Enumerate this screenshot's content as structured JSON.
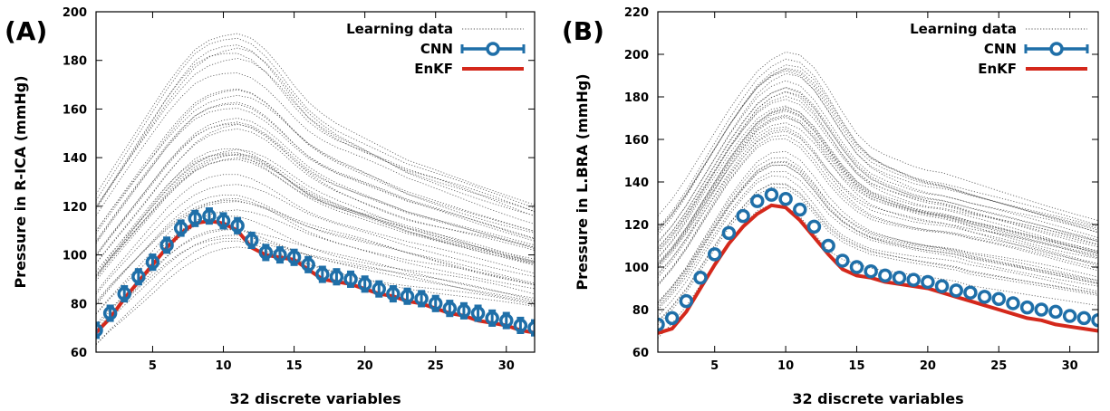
{
  "chart_data": [
    {
      "panel_label": "(A)",
      "type": "line",
      "xlabel": "32 discrete variables",
      "ylabel": "Pressure in R-ICA (mmHg)",
      "xlim": [
        1,
        32
      ],
      "ylim": [
        60,
        200
      ],
      "xticks": [
        5,
        10,
        15,
        20,
        25,
        30
      ],
      "yticks": [
        60,
        80,
        100,
        120,
        140,
        160,
        180,
        200
      ],
      "legend_position": "top-right",
      "legend": [
        "Learning data",
        "CNN",
        "EnKF"
      ],
      "learning_envelope": {
        "lower": [
          60,
          66,
          71,
          76,
          81,
          86,
          90,
          93,
          95,
          96,
          96,
          95,
          94,
          93,
          92,
          91,
          90,
          89,
          88,
          87,
          86,
          85,
          84,
          83,
          82,
          81,
          80,
          79,
          78,
          77,
          76,
          75
        ],
        "upper": [
          125,
          134,
          143,
          152,
          161,
          170,
          178,
          185,
          189,
          191,
          192,
          190,
          185,
          178,
          170,
          163,
          158,
          154,
          151,
          148,
          145,
          142,
          139,
          137,
          135,
          133,
          131,
          129,
          127,
          125,
          123,
          121
        ],
        "curve_count": 40
      },
      "series": [
        {
          "name": "CNN",
          "color": "#1f6fa8",
          "x": [
            1,
            2,
            3,
            4,
            5,
            6,
            7,
            8,
            9,
            10,
            11,
            12,
            13,
            14,
            15,
            16,
            17,
            18,
            19,
            20,
            21,
            22,
            23,
            24,
            25,
            26,
            27,
            28,
            29,
            30,
            31,
            32
          ],
          "values": [
            69,
            76,
            84,
            91,
            97,
            104,
            111,
            115,
            116,
            114,
            112,
            106,
            101,
            100,
            99,
            96,
            92,
            91,
            90,
            88,
            86,
            84,
            83,
            82,
            80,
            78,
            77,
            76,
            74,
            73,
            71,
            70
          ],
          "error": 3
        },
        {
          "name": "EnKF",
          "color": "#d4281b",
          "x": [
            1,
            2,
            3,
            4,
            5,
            6,
            7,
            8,
            9,
            10,
            11,
            12,
            13,
            14,
            15,
            16,
            17,
            18,
            19,
            20,
            21,
            22,
            23,
            24,
            25,
            26,
            27,
            28,
            29,
            30,
            31,
            32
          ],
          "values": [
            68,
            74,
            82,
            89,
            96,
            103,
            109,
            113,
            114,
            113,
            110,
            103,
            100,
            99,
            98,
            94,
            90,
            89,
            88,
            86,
            84,
            83,
            81,
            80,
            78,
            76,
            75,
            73,
            72,
            71,
            69,
            68
          ]
        }
      ]
    },
    {
      "panel_label": "(B)",
      "type": "line",
      "xlabel": "32 discrete variables",
      "ylabel": "Pressure in L.BRA (mmHg)",
      "xlim": [
        1,
        32
      ],
      "ylim": [
        60,
        220
      ],
      "xticks": [
        5,
        10,
        15,
        20,
        25,
        30
      ],
      "yticks": [
        60,
        80,
        100,
        120,
        140,
        160,
        180,
        200,
        220
      ],
      "legend_position": "top-right",
      "legend": [
        "Learning data",
        "CNN",
        "EnKF"
      ],
      "learning_envelope": {
        "lower": [
          65,
          72,
          80,
          90,
          100,
          110,
          118,
          125,
          128,
          127,
          122,
          114,
          106,
          102,
          100,
          98,
          97,
          96,
          95,
          94,
          93,
          92,
          90,
          89,
          88,
          87,
          86,
          85,
          84,
          83,
          82,
          81
        ],
        "upper": [
          127,
          135,
          145,
          156,
          167,
          178,
          188,
          197,
          203,
          207,
          206,
          200,
          190,
          178,
          167,
          160,
          156,
          153,
          150,
          148,
          147,
          145,
          143,
          141,
          139,
          137,
          135,
          133,
          131,
          129,
          127,
          125
        ],
        "curve_count": 40
      },
      "series": [
        {
          "name": "CNN",
          "color": "#1f6fa8",
          "x": [
            1,
            2,
            3,
            4,
            5,
            6,
            7,
            8,
            9,
            10,
            11,
            12,
            13,
            14,
            15,
            16,
            17,
            18,
            19,
            20,
            21,
            22,
            23,
            24,
            25,
            26,
            27,
            28,
            29,
            30,
            31,
            32
          ],
          "values": [
            73,
            76,
            84,
            95,
            106,
            116,
            124,
            131,
            134,
            132,
            127,
            119,
            110,
            103,
            100,
            98,
            96,
            95,
            94,
            93,
            91,
            89,
            88,
            86,
            85,
            83,
            81,
            80,
            79,
            77,
            76,
            75
          ],
          "error": 1
        },
        {
          "name": "EnKF",
          "color": "#d4281b",
          "x": [
            1,
            2,
            3,
            4,
            5,
            6,
            7,
            8,
            9,
            10,
            11,
            12,
            13,
            14,
            15,
            16,
            17,
            18,
            19,
            20,
            21,
            22,
            23,
            24,
            25,
            26,
            27,
            28,
            29,
            30,
            31,
            32
          ],
          "values": [
            69,
            71,
            79,
            90,
            101,
            111,
            119,
            125,
            129,
            128,
            122,
            114,
            106,
            99,
            96,
            95,
            93,
            92,
            91,
            90,
            88,
            86,
            84,
            82,
            80,
            78,
            76,
            75,
            73,
            72,
            71,
            70
          ]
        }
      ]
    }
  ]
}
